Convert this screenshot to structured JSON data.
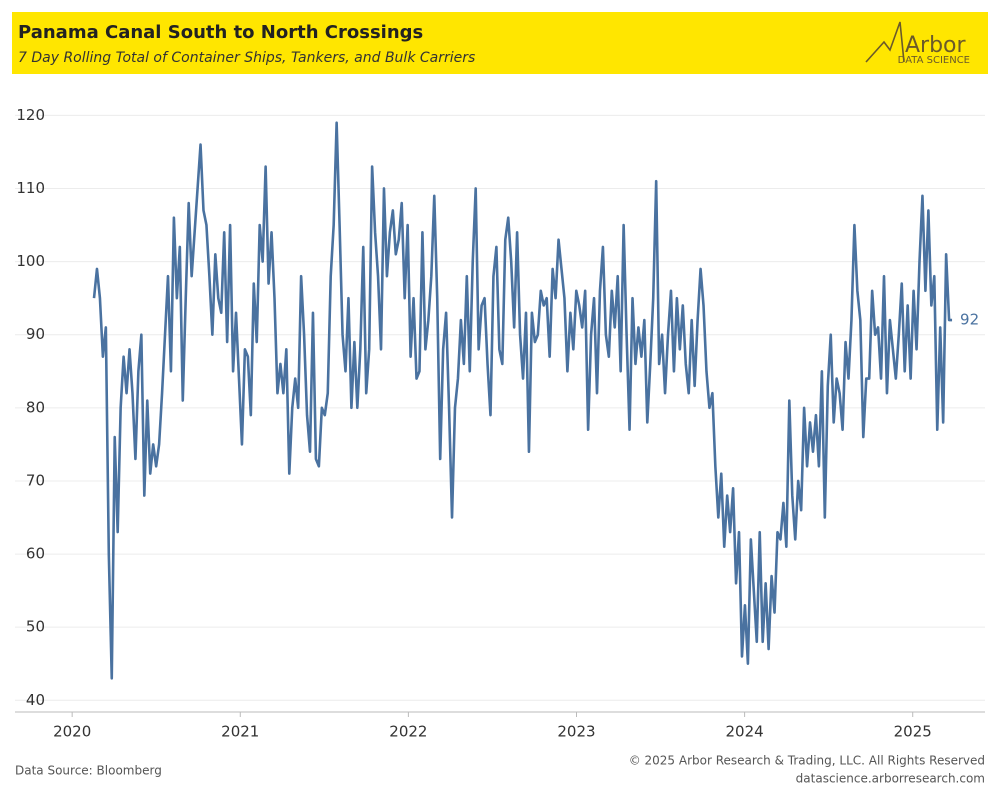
{
  "chart_data": {
    "type": "line",
    "title": "Panama Canal South to North Crossings",
    "subtitle": "7 Day Rolling Total of Container Ships, Tankers, and Bulk Carriers",
    "logo": {
      "name": "Arbor",
      "tagline": "DATA SCIENCE"
    },
    "source": "Data Source: Bloomberg",
    "copyright": "© 2025 Arbor Research & Trading, LLC. All Rights Reserved",
    "website": "datascience.arborresearch.com",
    "xlim": [
      2019.66,
      2025.43
    ],
    "xticks": [
      2020,
      2021,
      2022,
      2023,
      2024,
      2025
    ],
    "ylim": [
      38.4,
      122.1
    ],
    "yticks": [
      40,
      50,
      60,
      70,
      80,
      90,
      100,
      110,
      120
    ],
    "grid": true,
    "x": [
      2020.13,
      2020.1476,
      2020.1652,
      2020.1828,
      2020.2004,
      2020.218,
      2020.2356,
      2020.2532,
      2020.2708,
      2020.2884,
      2020.306,
      2020.3236,
      2020.3412,
      2020.3588,
      2020.3764,
      2020.394,
      2020.4116,
      2020.4292,
      2020.4468,
      2020.4644,
      2020.482,
      2020.4996,
      2020.5172,
      2020.5348,
      2020.5524,
      2020.57,
      2020.5876,
      2020.6052,
      2020.6228,
      2020.6404,
      2020.658,
      2020.6756,
      2020.6932,
      2020.7108,
      2020.7284,
      2020.746,
      2020.7636,
      2020.7812,
      2020.7988,
      2020.8164,
      2020.834,
      2020.8516,
      2020.8692,
      2020.8868,
      2020.9044,
      2020.922,
      2020.9396,
      2020.9572,
      2020.9748,
      2020.9924,
      2021.01,
      2021.0276,
      2021.0452,
      2021.0628,
      2021.0804,
      2021.098,
      2021.1156,
      2021.1332,
      2021.1508,
      2021.1684,
      2021.186,
      2021.2036,
      2021.2212,
      2021.2388,
      2021.2564,
      2021.274,
      2021.2916,
      2021.3092,
      2021.3268,
      2021.3444,
      2021.362,
      2021.3796,
      2021.3972,
      2021.4148,
      2021.4324,
      2021.45,
      2021.4676,
      2021.4852,
      2021.5028,
      2021.5204,
      2021.538,
      2021.5556,
      2021.5732,
      2021.5908,
      2021.6084,
      2021.626,
      2021.6436,
      2021.6612,
      2021.6788,
      2021.6964,
      2021.714,
      2021.7316,
      2021.7492,
      2021.7668,
      2021.7844,
      2021.802,
      2021.8196,
      2021.8372,
      2021.8548,
      2021.8724,
      2021.89,
      2021.9076,
      2021.9252,
      2021.9428,
      2021.9604,
      2021.978,
      2021.9956,
      2022.0132,
      2022.0308,
      2022.0484,
      2022.066,
      2022.0836,
      2022.1012,
      2022.1188,
      2022.1364,
      2022.154,
      2022.1716,
      2022.1892,
      2022.2068,
      2022.2244,
      2022.242,
      2022.2596,
      2022.2772,
      2022.2948,
      2022.3124,
      2022.33,
      2022.3476,
      2022.3652,
      2022.3828,
      2022.4004,
      2022.418,
      2022.4356,
      2022.4532,
      2022.4708,
      2022.4884,
      2022.506,
      2022.5236,
      2022.5412,
      2022.5588,
      2022.5764,
      2022.594,
      2022.6116,
      2022.6292,
      2022.6468,
      2022.6644,
      2022.682,
      2022.6996,
      2022.7172,
      2022.7348,
      2022.7524,
      2022.77,
      2022.7876,
      2022.8052,
      2022.8228,
      2022.8404,
      2022.858,
      2022.8756,
      2022.8932,
      2022.9108,
      2022.9284,
      2022.946,
      2022.9636,
      2022.9812,
      2022.9988,
      2023.0164,
      2023.034,
      2023.0516,
      2023.0692,
      2023.0868,
      2023.1044,
      2023.122,
      2023.1396,
      2023.1572,
      2023.1748,
      2023.1924,
      2023.21,
      2023.2276,
      2023.2452,
      2023.2628,
      2023.2804,
      2023.298,
      2023.3156,
      2023.3332,
      2023.3508,
      2023.3684,
      2023.386,
      2023.4036,
      2023.4212,
      2023.4388,
      2023.4564,
      2023.474,
      2023.4916,
      2023.5092,
      2023.5268,
      2023.5444,
      2023.562,
      2023.5796,
      2023.5972,
      2023.6148,
      2023.6324,
      2023.65,
      2023.6676,
      2023.6852,
      2023.7028,
      2023.7204,
      2023.738,
      2023.7556,
      2023.7732,
      2023.7908,
      2023.8084,
      2023.826,
      2023.8436,
      2023.8612,
      2023.8788,
      2023.8964,
      2023.914,
      2023.9316,
      2023.9492,
      2023.9668,
      2023.9844,
      2024.002,
      2024.0196,
      2024.0372,
      2024.0548,
      2024.0724,
      2024.09,
      2024.1076,
      2024.1252,
      2024.1428,
      2024.1604,
      2024.178,
      2024.1956,
      2024.2132,
      2024.2308,
      2024.2484,
      2024.266,
      2024.2836,
      2024.3012,
      2024.3188,
      2024.3364,
      2024.354,
      2024.3716,
      2024.3892,
      2024.4068,
      2024.4244,
      2024.442,
      2024.4596,
      2024.4772,
      2024.4948,
      2024.5124,
      2024.53,
      2024.5476,
      2024.5652,
      2024.5828,
      2024.6004,
      2024.618,
      2024.6356,
      2024.6532,
      2024.6708,
      2024.6884,
      2024.706,
      2024.7236,
      2024.7412,
      2024.7588,
      2024.7764,
      2024.794,
      2024.8116,
      2024.8292,
      2024.8468,
      2024.8644,
      2024.882,
      2024.8996,
      2024.9172,
      2024.9348,
      2024.9524,
      2024.97,
      2024.9876,
      2025.0052,
      2025.0228,
      2025.0404,
      2025.058,
      2025.0756,
      2025.0932,
      2025.1108,
      2025.1284,
      2025.146,
      2025.1636,
      2025.1812,
      2025.1988,
      2025.2164,
      2025.234
    ],
    "series": [
      {
        "color": "#4a72a0",
        "values": [
          95,
          99,
          95,
          87,
          91,
          60,
          43,
          76,
          63,
          80,
          87,
          82,
          88,
          82,
          73,
          85,
          90,
          68,
          81,
          71,
          75,
          72,
          75,
          82,
          90,
          98,
          85,
          106,
          95,
          102,
          81,
          95,
          108,
          98,
          104,
          110,
          116,
          107,
          105,
          98,
          90,
          101,
          95,
          93,
          104,
          89,
          105,
          85,
          93,
          84,
          75,
          88,
          87,
          79,
          97,
          89,
          105,
          100,
          113,
          97,
          104,
          95,
          82,
          86,
          82,
          88,
          71,
          80,
          84,
          80,
          98,
          90,
          79,
          74,
          93,
          73,
          72,
          80,
          79,
          82,
          98,
          105,
          119,
          105,
          90,
          85,
          95,
          80,
          89,
          80,
          88,
          102,
          82,
          88,
          113,
          104,
          98,
          88,
          110,
          98,
          104,
          107,
          101,
          103,
          108,
          95,
          105,
          87,
          95,
          84,
          85,
          104,
          88,
          92,
          98,
          109,
          95,
          73,
          88,
          93,
          80,
          65,
          80,
          84,
          92,
          86,
          98,
          85,
          100,
          110,
          88,
          94,
          95,
          86,
          79,
          98,
          102,
          88,
          86,
          103,
          106,
          100,
          91,
          104,
          90,
          84,
          93,
          74,
          93,
          89,
          90,
          96,
          94,
          95,
          87,
          99,
          95,
          103,
          99,
          95,
          85,
          93,
          88,
          96,
          94,
          91,
          96,
          77,
          90,
          95,
          82,
          96,
          102,
          90,
          87,
          96,
          91,
          98,
          85,
          105,
          90,
          77,
          95,
          86,
          91,
          87,
          92,
          78,
          86,
          95,
          111,
          86,
          90,
          82,
          90,
          96,
          85,
          95,
          88,
          94,
          86,
          82,
          92,
          83,
          92,
          99,
          94,
          85,
          80,
          82,
          72,
          65,
          71,
          61,
          68,
          63,
          69,
          56,
          63,
          46,
          53,
          45,
          62,
          55,
          48,
          63,
          48,
          56,
          47,
          57,
          52,
          63,
          62,
          67,
          61,
          81,
          68,
          62,
          70,
          66,
          80,
          72,
          78,
          74,
          79,
          72,
          85,
          65,
          83,
          90,
          78,
          84,
          82,
          77,
          89,
          84,
          92,
          105,
          96,
          92,
          76,
          84,
          84,
          96,
          90,
          91,
          84,
          98,
          82,
          92,
          88,
          84,
          90,
          97,
          85,
          94,
          84,
          96,
          88,
          100,
          109,
          96,
          107,
          94,
          98,
          77,
          91,
          78,
          101,
          92,
          92
        ]
      }
    ]
  }
}
